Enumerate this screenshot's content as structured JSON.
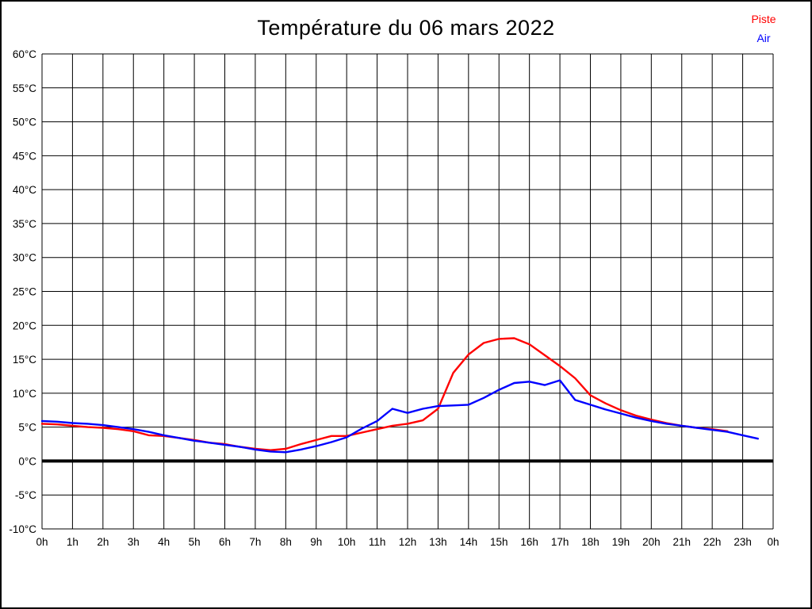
{
  "title": "Température du 06 mars 2022",
  "legend": [
    {
      "label": "Piste",
      "color": "#ff0000"
    },
    {
      "label": "Air",
      "color": "#0000ff"
    }
  ],
  "chart_data": {
    "type": "line",
    "title": "Température du 06 mars 2022",
    "xlabel": "",
    "ylabel": "",
    "xlim": [
      0,
      24
    ],
    "ylim": [
      -10,
      60
    ],
    "grid": true,
    "zero_line_at": 0,
    "x_tick_step_hours": 1,
    "x_tick_labels": [
      "0h",
      "1h",
      "2h",
      "3h",
      "4h",
      "5h",
      "6h",
      "7h",
      "8h",
      "9h",
      "10h",
      "11h",
      "12h",
      "13h",
      "14h",
      "15h",
      "16h",
      "17h",
      "18h",
      "19h",
      "20h",
      "21h",
      "22h",
      "23h",
      "0h"
    ],
    "y_tick_step": 5,
    "y_tick_labels": [
      "-10°C",
      "-5°C",
      "0°C",
      "5°C",
      "10°C",
      "15°C",
      "20°C",
      "25°C",
      "30°C",
      "35°C",
      "40°C",
      "45°C",
      "50°C",
      "55°C",
      "60°C"
    ],
    "legend_position": "top-right",
    "series": [
      {
        "name": "Piste",
        "color": "#ff0000",
        "x": [
          0,
          0.5,
          1,
          1.5,
          2,
          2.5,
          3,
          3.5,
          4,
          4.5,
          5,
          5.5,
          6,
          6.5,
          7,
          7.5,
          8,
          8.5,
          9,
          9.5,
          10,
          10.5,
          11,
          11.5,
          12,
          12.5,
          13,
          13.5,
          14,
          14.5,
          15,
          15.5,
          16,
          16.5,
          17,
          17.5,
          18,
          18.5,
          19,
          19.5,
          20,
          20.5,
          21,
          21.5,
          22,
          22.5
        ],
        "values": [
          5.5,
          5.4,
          5.2,
          5.0,
          4.9,
          4.7,
          4.4,
          3.8,
          3.7,
          3.4,
          3.1,
          2.7,
          2.5,
          2.1,
          1.8,
          1.6,
          1.8,
          2.5,
          3.1,
          3.7,
          3.7,
          4.2,
          4.7,
          5.2,
          5.5,
          6.0,
          7.7,
          13.0,
          15.7,
          17.4,
          18.0,
          18.1,
          17.2,
          15.6,
          14.0,
          12.2,
          9.7,
          8.5,
          7.5,
          6.7,
          6.1,
          5.6,
          5.2,
          4.9,
          4.7,
          4.4
        ]
      },
      {
        "name": "Air",
        "color": "#0000ff",
        "x": [
          0,
          0.5,
          1,
          1.5,
          2,
          2.5,
          3,
          3.5,
          4,
          4.5,
          5,
          5.5,
          6,
          6.5,
          7,
          7.5,
          8,
          8.5,
          9,
          9.5,
          10,
          10.5,
          11,
          11.5,
          12,
          12.5,
          13,
          13.5,
          14,
          14.5,
          15,
          15.5,
          16,
          16.5,
          17,
          17.5,
          18,
          18.5,
          19,
          19.5,
          20,
          20.5,
          21,
          21.5,
          22,
          22.5,
          23,
          23.5
        ],
        "values": [
          5.9,
          5.8,
          5.6,
          5.5,
          5.3,
          5.0,
          4.7,
          4.3,
          3.8,
          3.4,
          3.0,
          2.7,
          2.4,
          2.1,
          1.7,
          1.4,
          1.3,
          1.7,
          2.2,
          2.8,
          3.5,
          4.8,
          5.9,
          7.7,
          7.1,
          7.7,
          8.1,
          8.2,
          8.3,
          9.3,
          10.5,
          11.5,
          11.7,
          11.2,
          11.9,
          9.0,
          8.3,
          7.6,
          7.0,
          6.4,
          5.9,
          5.5,
          5.2,
          4.9,
          4.6,
          4.3,
          3.8,
          3.3
        ]
      }
    ]
  }
}
